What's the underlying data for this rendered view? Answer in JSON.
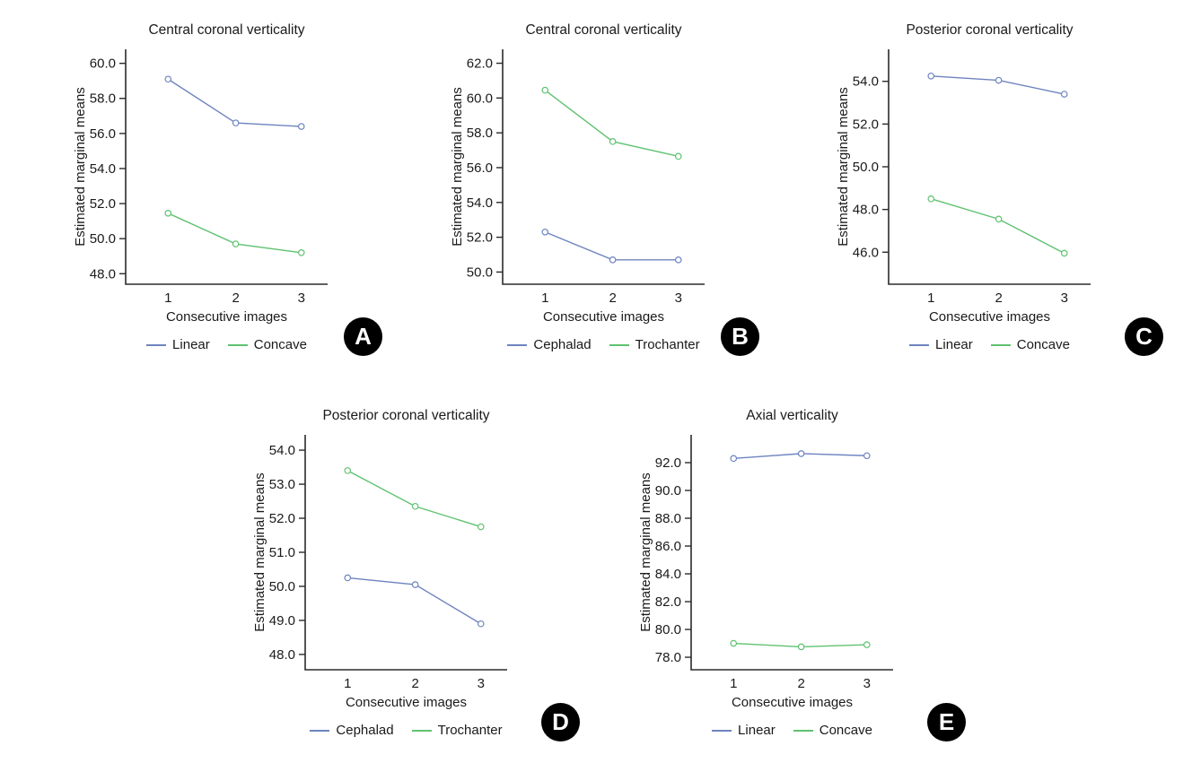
{
  "figure": {
    "background": "#ffffff",
    "text_color": "#1a1a1a",
    "axis_color": "#2b2b2b",
    "series_blue": "#6e84c0",
    "series_green": "#5fc271",
    "badge_bg": "#000000",
    "badge_text_color": "#ffffff"
  },
  "chart_data": [
    {
      "type": "line",
      "panel_label": "A",
      "title": "Central coronal verticality",
      "xlabel": "Consecutive images",
      "ylabel": "Estimated marginal means",
      "x": [
        1,
        2,
        3
      ],
      "yticks": [
        48,
        50,
        52,
        54,
        56,
        58,
        60
      ],
      "ylim": [
        47.4,
        60.8
      ],
      "legend_position": "bottom",
      "grid": false,
      "series": [
        {
          "name": "Linear",
          "color": "#6e84c0",
          "values": [
            59.1,
            56.6,
            56.4
          ]
        },
        {
          "name": "Concave",
          "color": "#5fc271",
          "values": [
            51.45,
            49.7,
            49.2
          ]
        }
      ]
    },
    {
      "type": "line",
      "panel_label": "B",
      "title": "Central coronal verticality",
      "xlabel": "Consecutive images",
      "ylabel": "Estimated marginal means",
      "x": [
        1,
        2,
        3
      ],
      "yticks": [
        50,
        52,
        54,
        56,
        58,
        60,
        62
      ],
      "ylim": [
        49.3,
        62.8
      ],
      "legend_position": "bottom",
      "grid": false,
      "series": [
        {
          "name": "Cephalad",
          "color": "#6e84c0",
          "values": [
            52.3,
            50.7,
            50.7
          ]
        },
        {
          "name": "Trochanter",
          "color": "#5fc271",
          "values": [
            60.45,
            57.5,
            56.65
          ]
        }
      ]
    },
    {
      "type": "line",
      "panel_label": "C",
      "title": "Posterior coronal verticality",
      "xlabel": "Consecutive images",
      "ylabel": "Estimated marginal means",
      "x": [
        1,
        2,
        3
      ],
      "yticks": [
        46,
        48,
        50,
        52,
        54
      ],
      "ylim": [
        44.5,
        55.5
      ],
      "legend_position": "bottom",
      "grid": false,
      "series": [
        {
          "name": "Linear",
          "color": "#6e84c0",
          "values": [
            54.25,
            54.05,
            53.4
          ]
        },
        {
          "name": "Concave",
          "color": "#5fc271",
          "values": [
            48.5,
            47.55,
            45.95
          ]
        }
      ]
    },
    {
      "type": "line",
      "panel_label": "D",
      "title": "Posterior coronal verticality",
      "xlabel": "Consecutive images",
      "ylabel": "Estimated marginal means",
      "x": [
        1,
        2,
        3
      ],
      "yticks": [
        48,
        49,
        50,
        51,
        52,
        53,
        54
      ],
      "ylim": [
        47.55,
        54.45
      ],
      "legend_position": "bottom",
      "grid": false,
      "series": [
        {
          "name": "Cephalad",
          "color": "#6e84c0",
          "values": [
            50.25,
            50.05,
            48.9
          ]
        },
        {
          "name": "Trochanter",
          "color": "#5fc271",
          "values": [
            53.4,
            52.35,
            51.75
          ]
        }
      ]
    },
    {
      "type": "line",
      "panel_label": "E",
      "title": "Axial verticality",
      "xlabel": "Consecutive images",
      "ylabel": "Estimated marginal means",
      "x": [
        1,
        2,
        3
      ],
      "yticks": [
        78,
        80,
        82,
        84,
        86,
        88,
        90,
        92
      ],
      "ylim": [
        77.1,
        94.0
      ],
      "legend_position": "bottom",
      "grid": false,
      "series": [
        {
          "name": "Linear",
          "color": "#6e84c0",
          "values": [
            92.3,
            92.65,
            92.5
          ]
        },
        {
          "name": "Concave",
          "color": "#5fc271",
          "values": [
            79.0,
            78.75,
            78.9
          ]
        }
      ]
    }
  ]
}
